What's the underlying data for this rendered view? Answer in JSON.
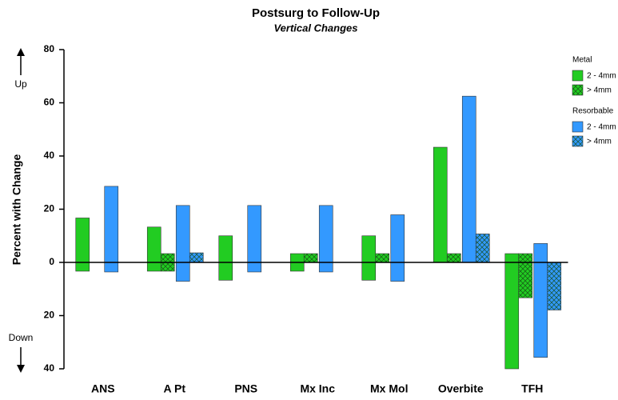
{
  "chart_data": {
    "type": "floating-bar",
    "title": "Postsurg to Follow-Up",
    "subtitle": "Vertical Changes",
    "y_label": "Percent with Change",
    "up_label": "Up",
    "down_label": "Down",
    "categories": [
      "ANS",
      "A Pt",
      "PNS",
      "Mx Inc",
      "Mx Mol",
      "Overbite",
      "TFH"
    ],
    "legend_groups": [
      "Metal",
      "Resorbable"
    ],
    "series": [
      {
        "name": "2 - 4mm",
        "group": 0,
        "color": "#22cc22",
        "hatched": false,
        "values": [
          [
            -3.3,
            16.7
          ],
          [
            -3.3,
            13.3
          ],
          [
            -6.7,
            10
          ],
          [
            -3.3,
            3.3
          ],
          [
            -6.7,
            10
          ],
          [
            0,
            43.3
          ],
          [
            -40,
            3.3
          ]
        ]
      },
      {
        "name": "> 4mm",
        "group": 0,
        "color": "#22cc22",
        "hatched": true,
        "values": [
          null,
          [
            -3.3,
            3.3
          ],
          null,
          [
            0,
            3.3
          ],
          [
            0,
            3.3
          ],
          [
            0,
            3.3
          ],
          [
            -13.3,
            3.3
          ]
        ]
      },
      {
        "name": "2 - 4mm",
        "group": 1,
        "color": "#3399ff",
        "hatched": false,
        "values": [
          [
            -3.6,
            28.6
          ],
          [
            -7.1,
            21.4
          ],
          [
            -3.6,
            21.4
          ],
          [
            -3.6,
            21.4
          ],
          [
            -7.1,
            17.9
          ],
          [
            0,
            62.5
          ],
          [
            -35.7,
            7.1
          ]
        ]
      },
      {
        "name": "> 4mm",
        "group": 1,
        "color": "#3399ff",
        "hatched": true,
        "values": [
          null,
          [
            0,
            3.6
          ],
          null,
          null,
          null,
          [
            0,
            10.7
          ],
          [
            -17.9,
            0
          ]
        ]
      }
    ],
    "ylim": [
      -40,
      80
    ],
    "yticks": [
      {
        "value": -40,
        "label": "40"
      },
      {
        "value": -20,
        "label": "20"
      },
      0,
      20,
      40,
      60,
      80
    ]
  }
}
